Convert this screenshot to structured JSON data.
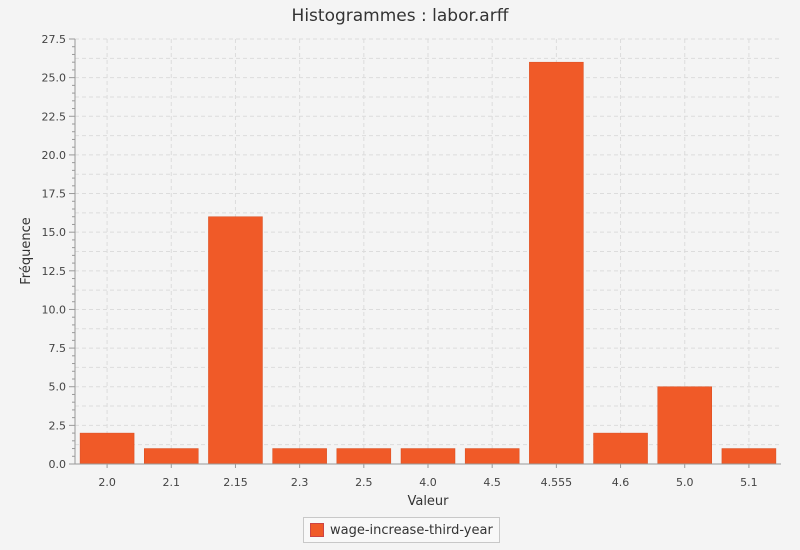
{
  "chart_data": {
    "type": "bar",
    "title": "Histogrammes : labor.arff",
    "xlabel": "Valeur",
    "ylabel": "Fréquence",
    "ylim": [
      0,
      27.5
    ],
    "yticks": [
      "0.0",
      "2.5",
      "5.0",
      "7.5",
      "10.0",
      "12.5",
      "15.0",
      "17.5",
      "20.0",
      "22.5",
      "25.0",
      "27.5"
    ],
    "grid": true,
    "legend_position": "bottom",
    "categories": [
      "2.0",
      "2.1",
      "2.15",
      "2.3",
      "2.5",
      "4.0",
      "4.5",
      "4.555",
      "4.6",
      "5.0",
      "5.1"
    ],
    "series": [
      {
        "name": "wage-increase-third-year",
        "color": "#f05a28",
        "values": [
          2,
          1,
          16,
          1,
          1,
          1,
          1,
          26,
          2,
          5,
          1
        ]
      }
    ]
  }
}
